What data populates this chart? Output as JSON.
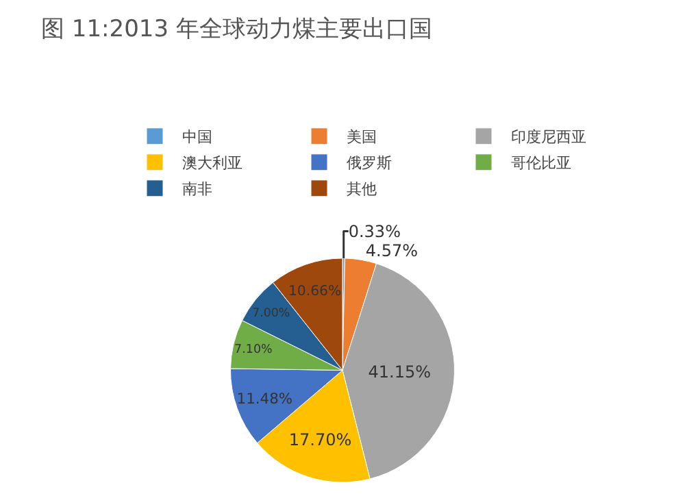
{
  "chart_data": {
    "type": "pie",
    "title": "图 11:2013 年全球动力煤主要出口国",
    "categories": [
      "中国",
      "美国",
      "印度尼西亚",
      "澳大利亚",
      "俄罗斯",
      "哥伦比亚",
      "南非",
      "其他"
    ],
    "values": [
      0.33,
      4.57,
      41.15,
      17.7,
      11.48,
      7.1,
      7.0,
      10.66
    ],
    "value_labels": [
      "0.33%",
      "4.57%",
      "41.15%",
      "17.70%",
      "11.48%",
      "7.10%",
      "7.00%",
      "10.66%"
    ],
    "colors": [
      "#5b9bd5",
      "#ed7d31",
      "#a5a5a5",
      "#ffc000",
      "#4472c4",
      "#70ad47",
      "#255e91",
      "#9e480e"
    ],
    "legend": "top"
  }
}
